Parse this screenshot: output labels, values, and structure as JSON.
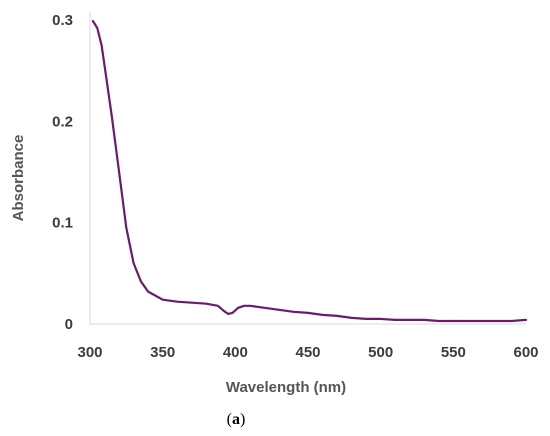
{
  "chart_data": {
    "type": "line",
    "xlabel": "Wavelength (nm)",
    "ylabel": "Absorbance",
    "xlim": [
      300,
      600
    ],
    "ylim": [
      0,
      0.3
    ],
    "x_ticks": [
      300,
      350,
      400,
      450,
      500,
      550,
      600
    ],
    "y_ticks": [
      0,
      0.1,
      0.2,
      0.3
    ],
    "x_tick_labels": [
      "300",
      "350",
      "400",
      "450",
      "500",
      "550",
      "600"
    ],
    "y_tick_labels": [
      "0",
      "0.1",
      "0.2",
      "0.3"
    ],
    "grid": false,
    "line_color": "#6a1b6e",
    "series": [
      {
        "x": [
          302,
          305,
          308,
          311,
          315,
          320,
          325,
          330,
          335,
          340,
          345,
          350,
          360,
          370,
          380,
          388,
          392,
          395,
          398,
          402,
          406,
          410,
          420,
          430,
          440,
          450,
          460,
          470,
          480,
          490,
          500,
          510,
          520,
          530,
          540,
          550,
          560,
          570,
          580,
          590,
          600
        ],
        "y": [
          0.299,
          0.292,
          0.275,
          0.245,
          0.205,
          0.15,
          0.095,
          0.06,
          0.042,
          0.032,
          0.028,
          0.024,
          0.022,
          0.021,
          0.02,
          0.018,
          0.013,
          0.01,
          0.011,
          0.016,
          0.018,
          0.018,
          0.016,
          0.014,
          0.012,
          0.011,
          0.009,
          0.008,
          0.006,
          0.005,
          0.005,
          0.004,
          0.004,
          0.004,
          0.003,
          0.003,
          0.003,
          0.003,
          0.003,
          0.003,
          0.004
        ]
      }
    ]
  },
  "caption": {
    "open": "(",
    "letter": "a",
    "close": ")"
  }
}
